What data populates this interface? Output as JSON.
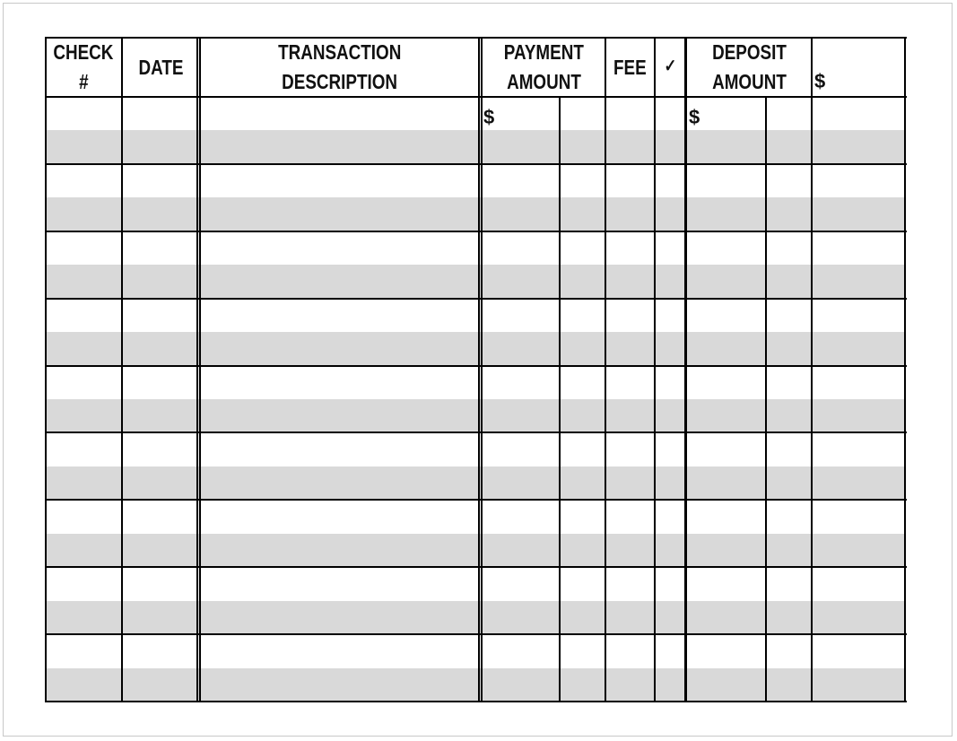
{
  "headers": {
    "check": [
      "CHECK",
      "#"
    ],
    "date": "DATE",
    "description": [
      "TRANSACTION",
      "DESCRIPTION"
    ],
    "payment": [
      "PAYMENT",
      "AMOUNT"
    ],
    "fee": "FEE",
    "cleared": "✓",
    "deposit": [
      "DEPOSIT",
      "AMOUNT"
    ],
    "balance": "$"
  },
  "first_row": {
    "payment_currency": "$",
    "deposit_currency": "$"
  },
  "colors": {
    "stripe": "#d9d9d9",
    "lines": "#000000"
  }
}
